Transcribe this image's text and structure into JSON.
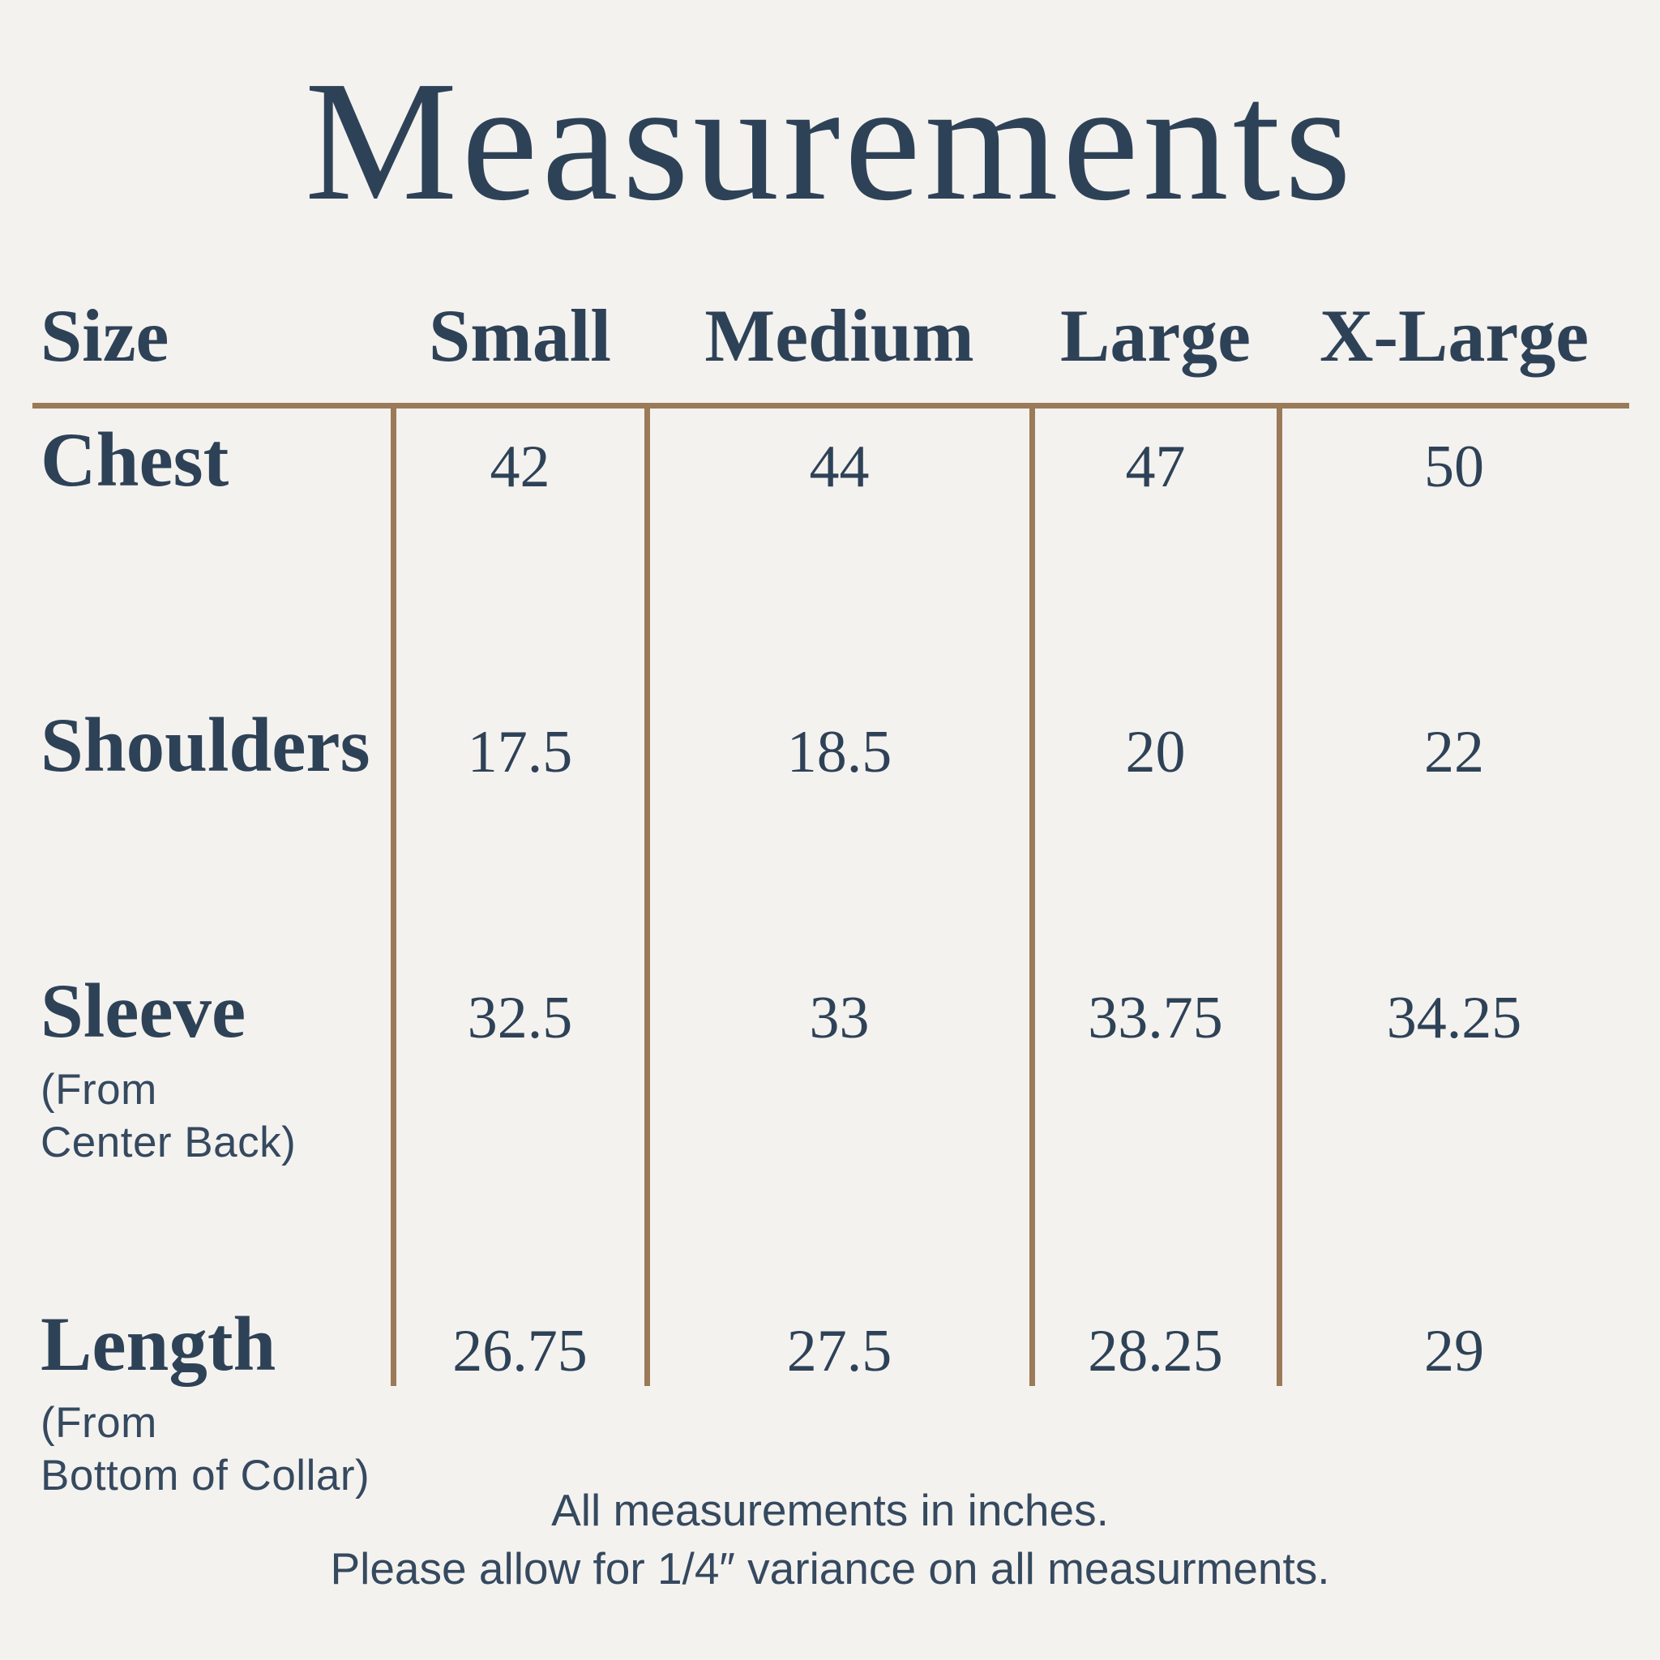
{
  "page": {
    "background_color": "#f4f2ef",
    "text_color": "#2e4257",
    "line_color": "#9a7a58"
  },
  "title": "Measurements",
  "chart_data": {
    "type": "table",
    "title": "Measurements",
    "columns": [
      "Size",
      "Small",
      "Medium",
      "Large",
      "X-Large"
    ],
    "rows": [
      {
        "label": "Chest",
        "values": [
          "42",
          "44",
          "47",
          "50"
        ]
      },
      {
        "label": "Shoulders",
        "values": [
          "17.5",
          "18.5",
          "20",
          "22"
        ]
      },
      {
        "label": "Sleeve",
        "sublabel": "(From\nCenter Back)",
        "values": [
          "32.5",
          "33",
          "33.75",
          "34.25"
        ]
      },
      {
        "label": "Length",
        "sublabel": "(From\nBottom of Collar)",
        "values": [
          "26.75",
          "27.5",
          "28.25",
          "29"
        ]
      }
    ],
    "units": "inches"
  },
  "footer": {
    "line1": "All measurements in inches.",
    "line2": "Please allow for 1/4″ variance on all measurments."
  }
}
